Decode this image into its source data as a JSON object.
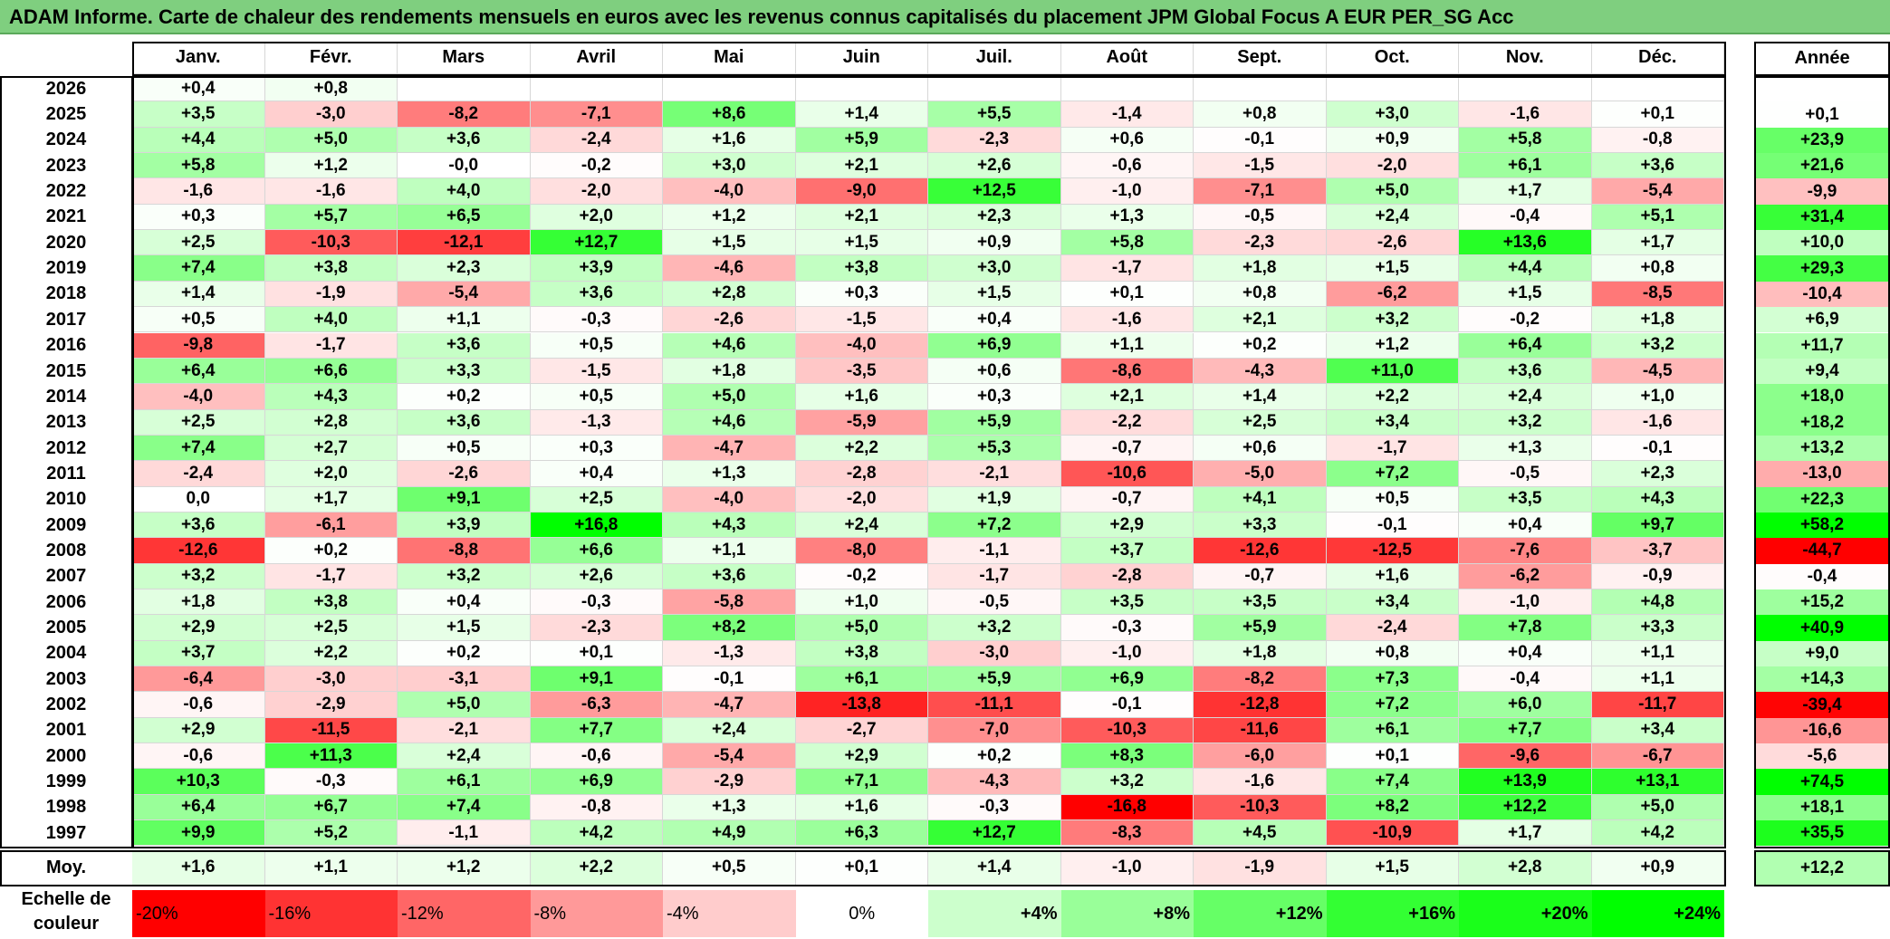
{
  "title": "ADAM Informe. Carte de chaleur des rendements mensuels en euros avec les revenus connus capitalisés du placement JPM Global Focus A EUR PER_SG Acc",
  "chart_data": {
    "type": "heatmap",
    "columns": [
      "Janv.",
      "Févr.",
      "Mars",
      "Avril",
      "Mai",
      "Juin",
      "Juil.",
      "Août",
      "Sept.",
      "Oct.",
      "Nov.",
      "Déc."
    ],
    "year_column_label": "Année",
    "average_row_label": "Moy.",
    "rows": [
      {
        "year": "2026",
        "values": [
          "+0,4",
          "+0,8",
          "",
          "",
          "",
          "",
          "",
          "",
          "",
          "",
          "",
          ""
        ],
        "annual": ""
      },
      {
        "year": "2025",
        "values": [
          "+3,5",
          "-3,0",
          "-8,2",
          "-7,1",
          "+8,6",
          "+1,4",
          "+5,5",
          "-1,4",
          "+0,8",
          "+3,0",
          "-1,6",
          "+0,1"
        ],
        "annual": "+0,1"
      },
      {
        "year": "2024",
        "values": [
          "+4,4",
          "+5,0",
          "+3,6",
          "-2,4",
          "+1,6",
          "+5,9",
          "-2,3",
          "+0,6",
          "-0,1",
          "+0,9",
          "+5,8",
          "-0,8"
        ],
        "annual": "+23,9"
      },
      {
        "year": "2023",
        "values": [
          "+5,8",
          "+1,2",
          "-0,0",
          "-0,2",
          "+3,0",
          "+2,1",
          "+2,6",
          "-0,6",
          "-1,5",
          "-2,0",
          "+6,1",
          "+3,6"
        ],
        "annual": "+21,6"
      },
      {
        "year": "2022",
        "values": [
          "-1,6",
          "-1,6",
          "+4,0",
          "-2,0",
          "-4,0",
          "-9,0",
          "+12,5",
          "-1,0",
          "-7,1",
          "+5,0",
          "+1,7",
          "-5,4"
        ],
        "annual": "-9,9"
      },
      {
        "year": "2021",
        "values": [
          "+0,3",
          "+5,7",
          "+6,5",
          "+2,0",
          "+1,2",
          "+2,1",
          "+2,3",
          "+1,3",
          "-0,5",
          "+2,4",
          "-0,4",
          "+5,1"
        ],
        "annual": "+31,4"
      },
      {
        "year": "2020",
        "values": [
          "+2,5",
          "-10,3",
          "-12,1",
          "+12,7",
          "+1,5",
          "+1,5",
          "+0,9",
          "+5,8",
          "-2,3",
          "-2,6",
          "+13,6",
          "+1,7"
        ],
        "annual": "+10,0"
      },
      {
        "year": "2019",
        "values": [
          "+7,4",
          "+3,8",
          "+2,3",
          "+3,9",
          "-4,6",
          "+3,8",
          "+3,0",
          "-1,7",
          "+1,8",
          "+1,5",
          "+4,4",
          "+0,8"
        ],
        "annual": "+29,3"
      },
      {
        "year": "2018",
        "values": [
          "+1,4",
          "-1,9",
          "-5,4",
          "+3,6",
          "+2,8",
          "+0,3",
          "+1,5",
          "+0,1",
          "+0,8",
          "-6,2",
          "+1,5",
          "-8,5"
        ],
        "annual": "-10,4"
      },
      {
        "year": "2017",
        "values": [
          "+0,5",
          "+4,0",
          "+1,1",
          "-0,3",
          "-2,6",
          "-1,5",
          "+0,4",
          "-1,6",
          "+2,1",
          "+3,2",
          "-0,2",
          "+1,8"
        ],
        "annual": "+6,9"
      },
      {
        "year": "2016",
        "values": [
          "-9,8",
          "-1,7",
          "+3,6",
          "+0,5",
          "+4,6",
          "-4,0",
          "+6,9",
          "+1,1",
          "+0,2",
          "+1,2",
          "+6,4",
          "+3,2"
        ],
        "annual": "+11,7"
      },
      {
        "year": "2015",
        "values": [
          "+6,4",
          "+6,6",
          "+3,3",
          "-1,5",
          "+1,8",
          "-3,5",
          "+0,6",
          "-8,6",
          "-4,3",
          "+11,0",
          "+3,6",
          "-4,5"
        ],
        "annual": "+9,4"
      },
      {
        "year": "2014",
        "values": [
          "-4,0",
          "+4,3",
          "+0,2",
          "+0,5",
          "+5,0",
          "+1,6",
          "+0,3",
          "+2,1",
          "+1,4",
          "+2,2",
          "+2,4",
          "+1,0"
        ],
        "annual": "+18,0"
      },
      {
        "year": "2013",
        "values": [
          "+2,5",
          "+2,8",
          "+3,6",
          "-1,3",
          "+4,6",
          "-5,9",
          "+5,9",
          "-2,2",
          "+2,5",
          "+3,4",
          "+3,2",
          "-1,6"
        ],
        "annual": "+18,2"
      },
      {
        "year": "2012",
        "values": [
          "+7,4",
          "+2,7",
          "+0,5",
          "+0,3",
          "-4,7",
          "+2,2",
          "+5,3",
          "-0,7",
          "+0,6",
          "-1,7",
          "+1,3",
          "-0,1"
        ],
        "annual": "+13,2"
      },
      {
        "year": "2011",
        "values": [
          "-2,4",
          "+2,0",
          "-2,6",
          "+0,4",
          "+1,3",
          "-2,8",
          "-2,1",
          "-10,6",
          "-5,0",
          "+7,2",
          "-0,5",
          "+2,3"
        ],
        "annual": "-13,0"
      },
      {
        "year": "2010",
        "values": [
          "0,0",
          "+1,7",
          "+9,1",
          "+2,5",
          "-4,0",
          "-2,0",
          "+1,9",
          "-0,7",
          "+4,1",
          "+0,5",
          "+3,5",
          "+4,3"
        ],
        "annual": "+22,3"
      },
      {
        "year": "2009",
        "values": [
          "+3,6",
          "-6,1",
          "+3,9",
          "+16,8",
          "+4,3",
          "+2,4",
          "+7,2",
          "+2,9",
          "+3,3",
          "-0,1",
          "+0,4",
          "+9,7"
        ],
        "annual": "+58,2"
      },
      {
        "year": "2008",
        "values": [
          "-12,6",
          "+0,2",
          "-8,8",
          "+6,6",
          "+1,1",
          "-8,0",
          "-1,1",
          "+3,7",
          "-12,6",
          "-12,5",
          "-7,6",
          "-3,7"
        ],
        "annual": "-44,7"
      },
      {
        "year": "2007",
        "values": [
          "+3,2",
          "-1,7",
          "+3,2",
          "+2,6",
          "+3,6",
          "-0,2",
          "-1,7",
          "-2,8",
          "-0,7",
          "+1,6",
          "-6,2",
          "-0,9"
        ],
        "annual": "-0,4"
      },
      {
        "year": "2006",
        "values": [
          "+1,8",
          "+3,8",
          "+0,4",
          "-0,3",
          "-5,8",
          "+1,0",
          "-0,5",
          "+3,5",
          "+3,5",
          "+3,4",
          "-1,0",
          "+4,8"
        ],
        "annual": "+15,2"
      },
      {
        "year": "2005",
        "values": [
          "+2,9",
          "+2,5",
          "+1,5",
          "-2,3",
          "+8,2",
          "+5,0",
          "+3,2",
          "-0,3",
          "+5,9",
          "-2,4",
          "+7,8",
          "+3,3"
        ],
        "annual": "+40,9"
      },
      {
        "year": "2004",
        "values": [
          "+3,7",
          "+2,2",
          "+0,2",
          "+0,1",
          "-1,3",
          "+3,8",
          "-3,0",
          "-1,0",
          "+1,8",
          "+0,8",
          "+0,4",
          "+1,1"
        ],
        "annual": "+9,0"
      },
      {
        "year": "2003",
        "values": [
          "-6,4",
          "-3,0",
          "-3,1",
          "+9,1",
          "-0,1",
          "+6,1",
          "+5,9",
          "+6,9",
          "-8,2",
          "+7,3",
          "-0,4",
          "+1,1"
        ],
        "annual": "+14,3"
      },
      {
        "year": "2002",
        "values": [
          "-0,6",
          "-2,9",
          "+5,0",
          "-6,3",
          "-4,7",
          "-13,8",
          "-11,1",
          "-0,1",
          "-12,8",
          "+7,2",
          "+6,0",
          "-11,7"
        ],
        "annual": "-39,4"
      },
      {
        "year": "2001",
        "values": [
          "+2,9",
          "-11,5",
          "-2,1",
          "+7,7",
          "+2,4",
          "-2,7",
          "-7,0",
          "-10,3",
          "-11,6",
          "+6,1",
          "+7,7",
          "+3,4"
        ],
        "annual": "-16,6"
      },
      {
        "year": "2000",
        "values": [
          "-0,6",
          "+11,3",
          "+2,4",
          "-0,6",
          "-5,4",
          "+2,9",
          "+0,2",
          "+8,3",
          "-6,0",
          "+0,1",
          "-9,6",
          "-6,7"
        ],
        "annual": "-5,6"
      },
      {
        "year": "1999",
        "values": [
          "+10,3",
          "-0,3",
          "+6,1",
          "+6,9",
          "-2,9",
          "+7,1",
          "-4,3",
          "+3,2",
          "-1,6",
          "+7,4",
          "+13,9",
          "+13,1"
        ],
        "annual": "+74,5"
      },
      {
        "year": "1998",
        "values": [
          "+6,4",
          "+6,7",
          "+7,4",
          "-0,8",
          "+1,3",
          "+1,6",
          "-0,3",
          "-16,8",
          "-10,3",
          "+8,2",
          "+12,2",
          "+5,0"
        ],
        "annual": "+18,1"
      },
      {
        "year": "1997",
        "values": [
          "+9,9",
          "+5,2",
          "-1,1",
          "+4,2",
          "+4,9",
          "+6,3",
          "+12,7",
          "-8,3",
          "+4,5",
          "-10,9",
          "+1,7",
          "+4,2"
        ],
        "annual": "+35,5"
      }
    ],
    "average": {
      "values": [
        "+1,6",
        "+1,1",
        "+1,2",
        "+2,2",
        "+0,5",
        "+0,1",
        "+1,4",
        "-1,0",
        "-1,9",
        "+1,5",
        "+2,8",
        "+0,9"
      ],
      "annual": "+12,2"
    },
    "color_scale": {
      "label": "Echelle de couleur",
      "stops": [
        {
          "label": "-20%",
          "value": -20,
          "color": "#ff0000"
        },
        {
          "label": "-16%",
          "value": -16,
          "color": "#ff3333"
        },
        {
          "label": "-12%",
          "value": -12,
          "color": "#ff6666"
        },
        {
          "label": "-8%",
          "value": -8,
          "color": "#ff9999"
        },
        {
          "label": "-4%",
          "value": -4,
          "color": "#ffcccc"
        },
        {
          "label": "0%",
          "value": 0,
          "color": "#ffffff"
        },
        {
          "label": "+4%",
          "value": 4,
          "color": "#ccffcc"
        },
        {
          "label": "+8%",
          "value": 8,
          "color": "#99ff99"
        },
        {
          "label": "+12%",
          "value": 12,
          "color": "#66ff66"
        },
        {
          "label": "+16%",
          "value": 16,
          "color": "#33ff33"
        },
        {
          "label": "+20%",
          "value": 20,
          "color": "#1aff1a"
        },
        {
          "label": "+24%",
          "value": 24,
          "color": "#00ff00"
        }
      ]
    }
  }
}
